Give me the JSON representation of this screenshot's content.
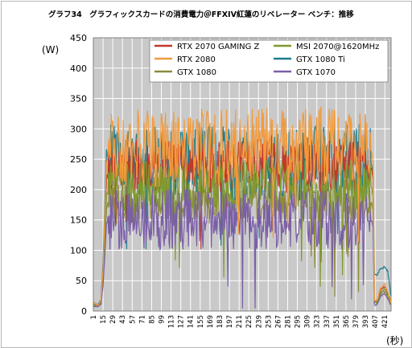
{
  "chart_data": {
    "type": "line",
    "title": "グラフ34　グラフィックスカードの消費電力＠FFXIV紅蓮のリベレーター ベンチ：推移",
    "ylabel": "(W)",
    "xlabel": "(秒)",
    "ylim": [
      0,
      450
    ],
    "yticks": [
      0,
      50,
      100,
      150,
      200,
      250,
      300,
      350,
      400,
      450
    ],
    "xlim": [
      1,
      430
    ],
    "xticks": [
      1,
      15,
      29,
      43,
      57,
      71,
      85,
      99,
      113,
      127,
      141,
      155,
      169,
      183,
      197,
      211,
      225,
      239,
      253,
      267,
      281,
      295,
      309,
      323,
      337,
      351,
      365,
      379,
      393,
      407,
      421
    ],
    "grid": true,
    "legend_position": "top-right",
    "series": [
      {
        "name": "RTX 2070 GAMING Z",
        "color": "#c0392b",
        "profile": {
          "x": [
            1,
            8,
            12,
            15,
            20,
            22,
            30,
            60,
            100,
            140,
            180,
            220,
            260,
            300,
            340,
            380,
            398,
            402,
            404,
            406,
            410,
            415,
            420,
            425,
            430
          ],
          "y": [
            11,
            9,
            14,
            60,
            218,
            230,
            236,
            240,
            238,
            240,
            236,
            238,
            240,
            238,
            240,
            236,
            238,
            234,
            220,
            15,
            15,
            34,
            42,
            30,
            14
          ],
          "range": [
            195,
            285
          ]
        }
      },
      {
        "name": "MSI 2070@1620MHz",
        "color": "#7f9a2e",
        "profile": {
          "x": [
            1,
            8,
            12,
            15,
            20,
            22,
            30,
            60,
            100,
            140,
            180,
            220,
            260,
            300,
            340,
            380,
            398,
            402,
            404,
            406,
            410,
            415,
            420,
            425,
            430
          ],
          "y": [
            10,
            9,
            12,
            50,
            190,
            200,
            205,
            208,
            206,
            208,
            205,
            207,
            208,
            206,
            207,
            205,
            206,
            202,
            190,
            14,
            14,
            30,
            36,
            26,
            12
          ],
          "range": [
            160,
            245
          ]
        }
      },
      {
        "name": "RTX 2080",
        "color": "#f39a3b",
        "profile": {
          "x": [
            1,
            8,
            12,
            15,
            20,
            22,
            30,
            60,
            100,
            140,
            180,
            220,
            260,
            300,
            340,
            380,
            398,
            402,
            404,
            406,
            410,
            415,
            420,
            425,
            430
          ],
          "y": [
            12,
            10,
            16,
            70,
            245,
            258,
            265,
            270,
            268,
            272,
            266,
            270,
            272,
            268,
            272,
            266,
            268,
            262,
            245,
            17,
            17,
            38,
            46,
            32,
            15
          ],
          "range": [
            215,
            345
          ]
        }
      },
      {
        "name": "GTX 1080 Ti",
        "color": "#1f7c8c",
        "profile": {
          "x": [
            1,
            8,
            12,
            15,
            20,
            22,
            30,
            60,
            100,
            140,
            180,
            220,
            260,
            300,
            340,
            380,
            398,
            402,
            404,
            406,
            410,
            415,
            420,
            425,
            430
          ],
          "y": [
            13,
            10,
            18,
            80,
            265,
            250,
            255,
            250,
            246,
            248,
            244,
            246,
            248,
            245,
            248,
            244,
            246,
            240,
            225,
            60,
            60,
            70,
            72,
            66,
            24
          ],
          "range": [
            200,
            325
          ]
        }
      },
      {
        "name": "GTX 1080",
        "color": "#8c8a3c",
        "profile": {
          "x": [
            1,
            8,
            12,
            15,
            20,
            22,
            30,
            60,
            100,
            140,
            180,
            220,
            260,
            300,
            340,
            380,
            398,
            402,
            404,
            406,
            410,
            415,
            420,
            425,
            430
          ],
          "y": [
            9,
            8,
            11,
            45,
            170,
            176,
            180,
            182,
            180,
            182,
            180,
            181,
            182,
            180,
            182,
            180,
            181,
            178,
            168,
            13,
            13,
            28,
            33,
            24,
            11
          ],
          "range": [
            140,
            220
          ]
        }
      },
      {
        "name": "GTX 1070",
        "color": "#7b5ea7",
        "profile": {
          "x": [
            1,
            8,
            12,
            15,
            20,
            22,
            30,
            60,
            100,
            140,
            180,
            220,
            260,
            300,
            340,
            380,
            398,
            402,
            404,
            406,
            410,
            415,
            420,
            425,
            430
          ],
          "y": [
            8,
            7,
            10,
            40,
            145,
            148,
            150,
            152,
            150,
            152,
            150,
            151,
            152,
            150,
            152,
            150,
            151,
            148,
            140,
            11,
            11,
            25,
            30,
            21,
            10
          ],
          "range": [
            95,
            195
          ]
        }
      }
    ]
  }
}
